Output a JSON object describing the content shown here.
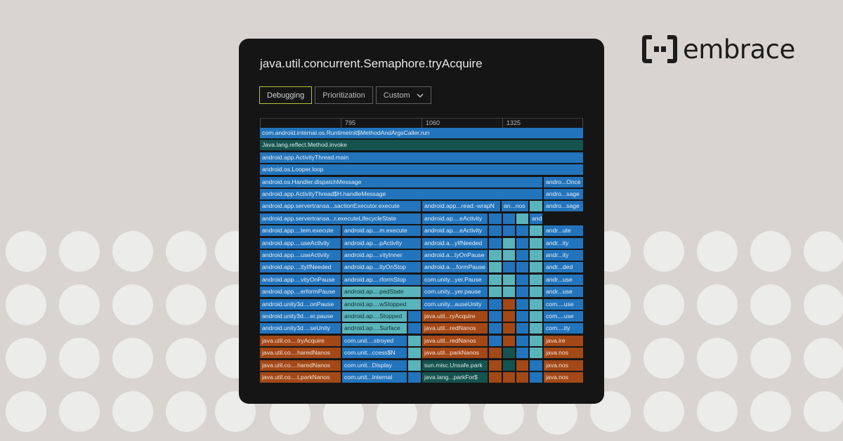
{
  "brand": {
    "name": "embrace"
  },
  "card": {
    "title": "java.util.concurrent.Semaphore.tryAcquire",
    "tabs": [
      {
        "label": "Debugging",
        "active": true
      },
      {
        "label": "Prioritization",
        "active": false
      },
      {
        "label": "Custom",
        "active": false,
        "icon": "chevron-down-icon"
      }
    ],
    "ruler": [
      "795",
      "1060",
      "1325"
    ]
  },
  "colors": {
    "blue": "#2274bc",
    "green": "#15534f",
    "teal": "#5ab4bc",
    "orange": "#a34817",
    "accent_tab": "#b4c33a",
    "card": "#151515",
    "background": "#d8d4d1"
  },
  "flame_rows": [
    [
      [
        "com.android.internal.os.RuntimeInit$MethodAndArgsCaller.run",
        "blue"
      ]
    ],
    [
      [
        "Java.lang.reflect.Method.invoke",
        "green"
      ]
    ],
    [
      [
        "android.app.ActivityThread.main",
        "blue"
      ]
    ],
    [
      [
        "android.os.Looper.loop",
        "blue"
      ]
    ],
    [
      [
        "android.os.Handler.dispatchMessage",
        "blue"
      ],
      [
        "andro...Once",
        "blue"
      ]
    ],
    [
      [
        "android.app.ActivityThread$H.handleMessage",
        "blue"
      ],
      [
        "andro...sage",
        "blue"
      ]
    ],
    [
      [
        "android.app.servertransa...sactionExecutor.execute",
        "blue"
      ],
      [
        "android.app...read.-wrapN",
        "blue"
      ],
      [
        "an...nos",
        "blue"
      ],
      [
        "",
        "teal"
      ],
      [
        "andro...sage",
        "blue"
      ]
    ],
    [
      [
        "android.app.servertransa...r.executeLifecycleState",
        "blue"
      ],
      [
        "android.ap....eActivity",
        "blue"
      ],
      [
        "",
        "blue"
      ],
      [
        "",
        "blue"
      ],
      [
        "",
        "teal"
      ],
      [
        "andro...cute",
        "blue"
      ]
    ],
    [
      [
        "android.app....tem.execute",
        "blue"
      ],
      [
        "android.ap....m.execute",
        "blue"
      ],
      [
        "android.ap....eActivity",
        "blue"
      ],
      [
        "",
        "blue"
      ],
      [
        "",
        "blue"
      ],
      [
        "",
        "blue"
      ],
      [
        "",
        "teal"
      ],
      [
        "andr...ute",
        "blue"
      ]
    ],
    [
      [
        "android.app....useActivity",
        "blue"
      ],
      [
        "android.ap....pActivity",
        "blue"
      ],
      [
        "android.a...yIfNeeded",
        "blue"
      ],
      [
        "",
        "blue"
      ],
      [
        "",
        "teal"
      ],
      [
        "",
        "blue"
      ],
      [
        "",
        "teal"
      ],
      [
        "andr...ity",
        "blue"
      ]
    ],
    [
      [
        "android.app....useActivity",
        "blue"
      ],
      [
        "android.ap....vityInner",
        "blue"
      ],
      [
        "android.a...tyOnPause",
        "blue"
      ],
      [
        "",
        "teal"
      ],
      [
        "",
        "teal"
      ],
      [
        "",
        "blue"
      ],
      [
        "",
        "teal"
      ],
      [
        "andr...ity",
        "blue"
      ]
    ],
    [
      [
        "android.app....ityIfNeeded",
        "blue"
      ],
      [
        "android.ap....ityOnStop",
        "blue"
      ],
      [
        "android.a....formPause",
        "blue"
      ],
      [
        "",
        "teal"
      ],
      [
        "",
        "blue"
      ],
      [
        "",
        "blue"
      ],
      [
        "",
        "teal"
      ],
      [
        "andr...ded",
        "blue"
      ]
    ],
    [
      [
        "android.app....vityOnPause",
        "blue"
      ],
      [
        "android.ap....rformStop",
        "blue"
      ],
      [
        "com.unity...yer.Pause",
        "blue"
      ],
      [
        "",
        "teal"
      ],
      [
        "",
        "teal"
      ],
      [
        "",
        "blue"
      ],
      [
        "",
        "teal"
      ],
      [
        "andr...use",
        "blue"
      ]
    ],
    [
      [
        "android.app....erformPause",
        "blue"
      ],
      [
        "android.ap....pedState",
        "teal"
      ],
      [
        "com.unity...yer.pause",
        "blue"
      ],
      [
        "",
        "teal"
      ],
      [
        "",
        "teal"
      ],
      [
        "",
        "blue"
      ],
      [
        "",
        "teal"
      ],
      [
        "andr...use",
        "blue"
      ]
    ],
    [
      [
        "android.unity3d....onPause",
        "blue"
      ],
      [
        "android.ap....wStopped",
        "teal"
      ],
      [
        "com.unity...auseUnity",
        "blue"
      ],
      [
        "",
        "blue"
      ],
      [
        "",
        "orange"
      ],
      [
        "",
        "blue"
      ],
      [
        "",
        "teal"
      ],
      [
        "com....use",
        "blue"
      ]
    ],
    [
      [
        "android.unity3d....er.pause",
        "blue"
      ],
      [
        "android.ap....Stopped",
        "teal"
      ],
      [
        "",
        "blue"
      ],
      [
        "java.util...ryAcquire",
        "orange"
      ],
      [
        "",
        "blue"
      ],
      [
        "",
        "orange"
      ],
      [
        "",
        "blue"
      ],
      [
        "",
        "teal"
      ],
      [
        "com....use",
        "blue"
      ]
    ],
    [
      [
        "android.unity3d....seUnity",
        "blue"
      ],
      [
        "android.ap....Surface",
        "teal"
      ],
      [
        "",
        "blue"
      ],
      [
        "java.util...redNanos",
        "orange"
      ],
      [
        "",
        "blue"
      ],
      [
        "",
        "orange"
      ],
      [
        "",
        "blue"
      ],
      [
        "",
        "teal"
      ],
      [
        "com....ity",
        "blue"
      ]
    ],
    [
      [
        "java.util.co....tryAcquire",
        "orange"
      ],
      [
        "com.unit....stroyed",
        "blue"
      ],
      [
        "",
        "teal"
      ],
      [
        "java.util...redNanos",
        "orange"
      ],
      [
        "",
        "blue"
      ],
      [
        "",
        "orange"
      ],
      [
        "",
        "blue"
      ],
      [
        "",
        "teal"
      ],
      [
        "java.ire",
        "orange"
      ]
    ],
    [
      [
        "java.util.co....haredNanos",
        "orange"
      ],
      [
        "com.unit...ccess$N",
        "blue"
      ],
      [
        "",
        "teal"
      ],
      [
        "java.util...parkNanos",
        "orange"
      ],
      [
        "",
        "orange"
      ],
      [
        "",
        "green"
      ],
      [
        "",
        "blue"
      ],
      [
        "",
        "teal"
      ],
      [
        "java.nos",
        "orange"
      ]
    ],
    [
      [
        "java.util.co....haredNanos",
        "orange"
      ],
      [
        "com.unit...Display",
        "blue"
      ],
      [
        "",
        "teal"
      ],
      [
        "sun.misc.Unsafe.park",
        "green"
      ],
      [
        "",
        "orange"
      ],
      [
        "",
        "green"
      ],
      [
        "",
        "orange"
      ],
      [
        "",
        "blue"
      ],
      [
        "java.nos",
        "orange"
      ]
    ],
    [
      [
        "java.util.co....t.parkNanos",
        "orange"
      ],
      [
        "com.unit...Internal",
        "blue"
      ],
      [
        "",
        "blue"
      ],
      [
        "java.lang...parkFor$",
        "green"
      ],
      [
        "",
        "orange"
      ],
      [
        "",
        "orange"
      ],
      [
        "",
        "orange"
      ],
      [
        "",
        "blue"
      ],
      [
        "java.nos",
        "orange"
      ]
    ]
  ]
}
